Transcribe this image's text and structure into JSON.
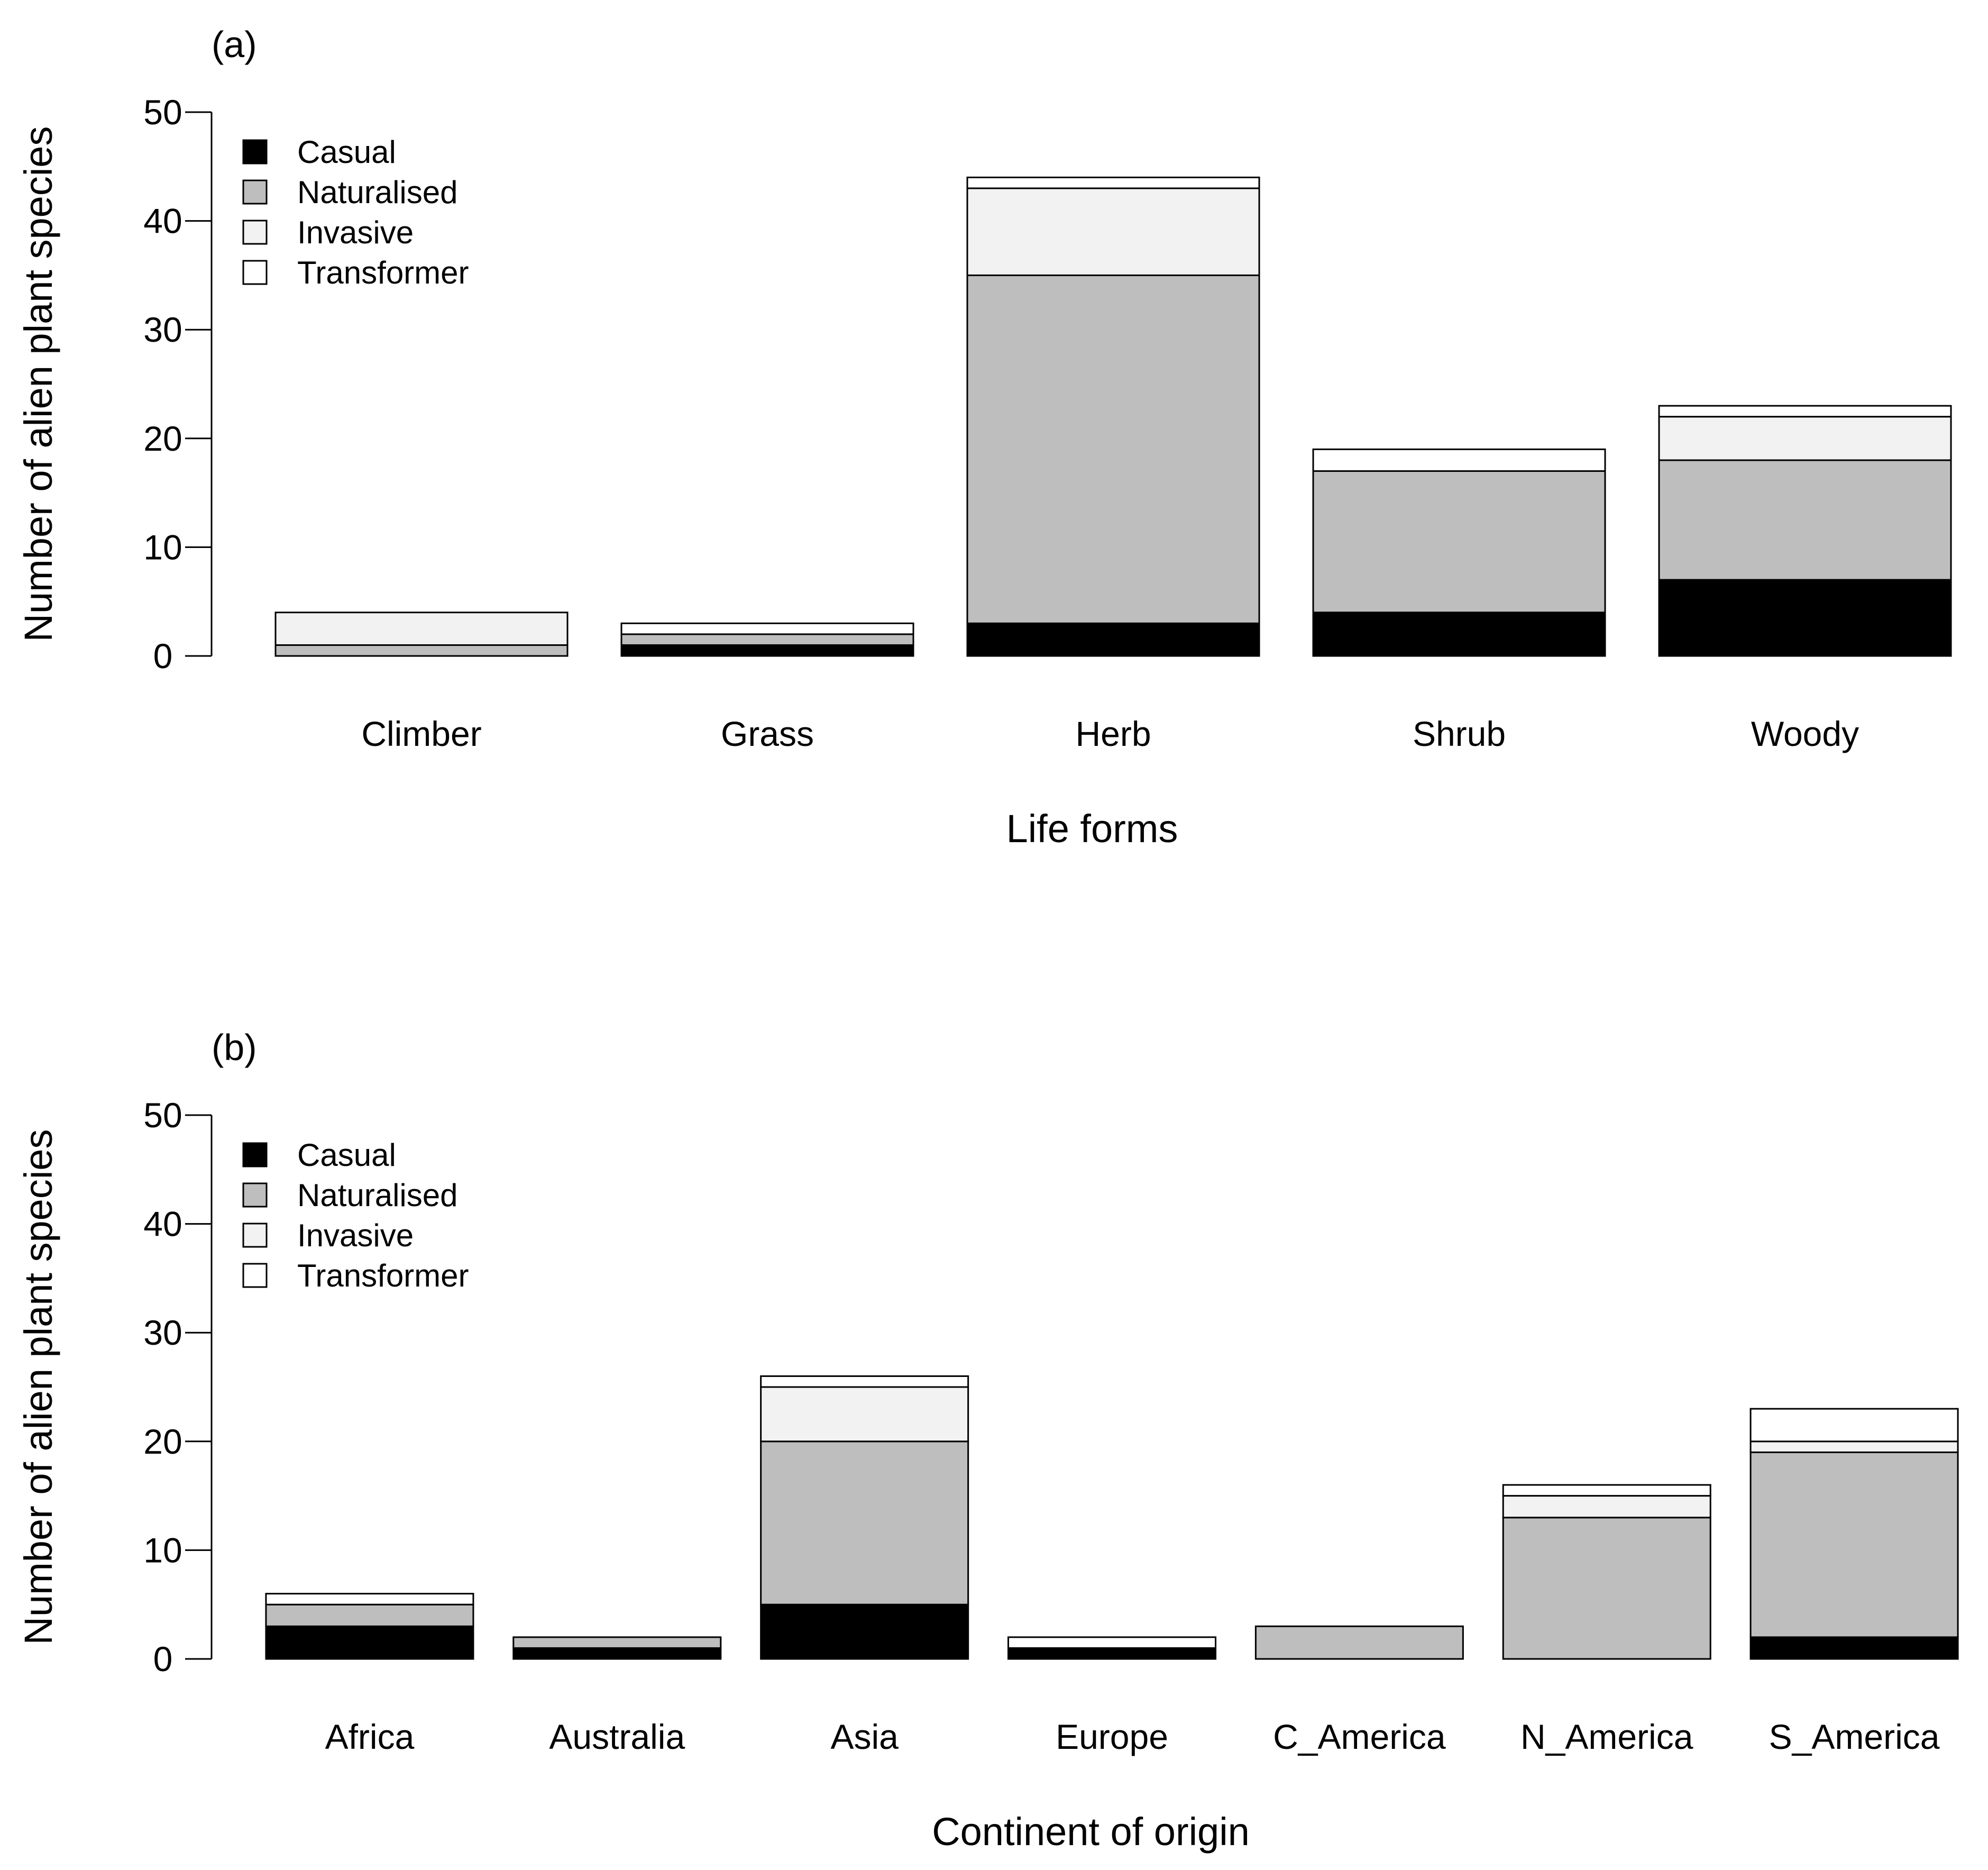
{
  "series_styles": [
    {
      "name": "Casual",
      "color": "#000000"
    },
    {
      "name": "Naturalised",
      "color": "#bebebe"
    },
    {
      "name": "Invasive",
      "color": "#f2f2f2"
    },
    {
      "name": "Transformer",
      "color": "#ffffff"
    }
  ],
  "chart_data": [
    {
      "type": "bar",
      "stacked": true,
      "panel_label": "(a)",
      "xlabel": "Life forms",
      "ylabel": "Number of alien plant species",
      "ylim": [
        0,
        50
      ],
      "yticks": [
        0,
        10,
        20,
        30,
        40,
        50
      ],
      "legend_position": "top-left",
      "categories": [
        "Climber",
        "Grass",
        "Herb",
        "Shrub",
        "Woody"
      ],
      "series": [
        {
          "name": "Casual",
          "values": [
            0,
            1,
            3,
            4,
            7
          ]
        },
        {
          "name": "Naturalised",
          "values": [
            1,
            1,
            32,
            13,
            11
          ]
        },
        {
          "name": "Invasive",
          "values": [
            3,
            0,
            8,
            0,
            4
          ]
        },
        {
          "name": "Transformer",
          "values": [
            0,
            1,
            1,
            2,
            1
          ]
        }
      ]
    },
    {
      "type": "bar",
      "stacked": true,
      "panel_label": "(b)",
      "xlabel": "Continent of origin",
      "ylabel": "Number of alien plant species",
      "ylim": [
        0,
        50
      ],
      "yticks": [
        0,
        10,
        20,
        30,
        40,
        50
      ],
      "legend_position": "top-left",
      "categories": [
        "Africa",
        "Australia",
        "Asia",
        "Europe",
        "C_America",
        "N_America",
        "S_America"
      ],
      "series": [
        {
          "name": "Casual",
          "values": [
            3,
            1,
            5,
            1,
            0,
            0,
            2
          ]
        },
        {
          "name": "Naturalised",
          "values": [
            2,
            1,
            15,
            0,
            3,
            13,
            17
          ]
        },
        {
          "name": "Invasive",
          "values": [
            0,
            0,
            5,
            0,
            0,
            2,
            1
          ]
        },
        {
          "name": "Transformer",
          "values": [
            1,
            0,
            1,
            1,
            0,
            1,
            3
          ]
        }
      ]
    }
  ]
}
